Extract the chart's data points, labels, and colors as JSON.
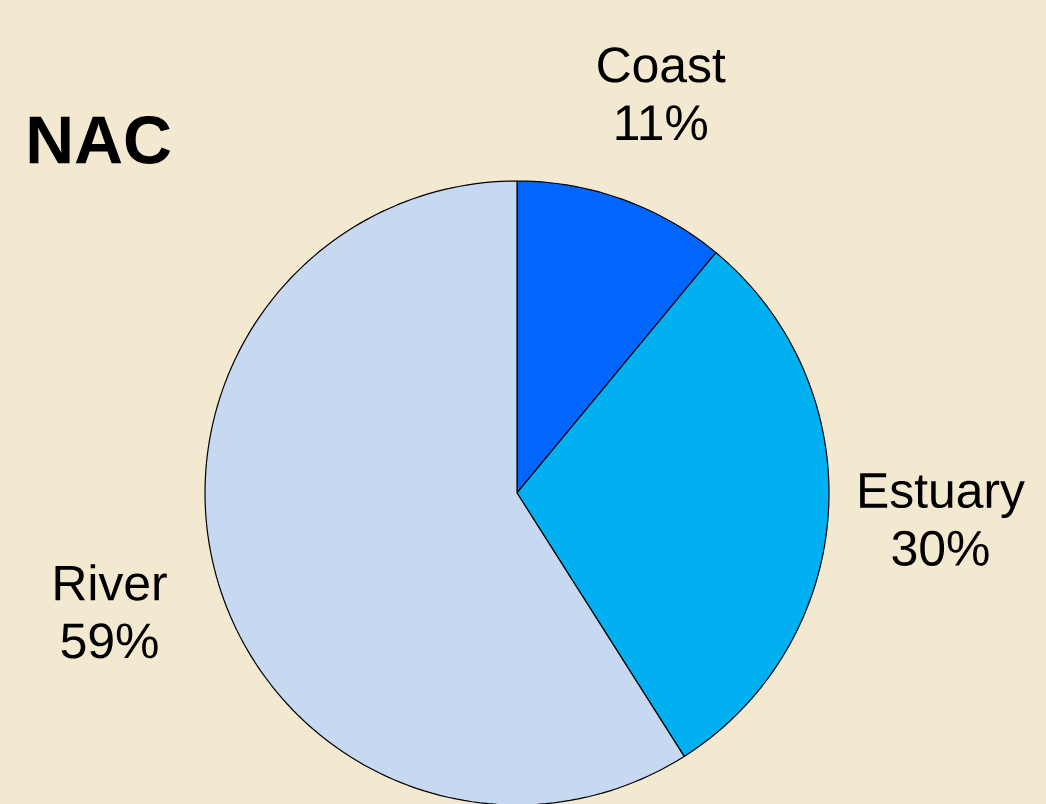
{
  "chart_data": {
    "type": "pie",
    "title": "NAC",
    "categories": [
      "Coast",
      "Estuary",
      "River"
    ],
    "values": [
      11,
      30,
      59
    ],
    "value_labels": [
      "11%",
      "30%",
      "59%"
    ],
    "colors": [
      "#0066ff",
      "#00b0f0",
      "#c6d9f1"
    ]
  }
}
